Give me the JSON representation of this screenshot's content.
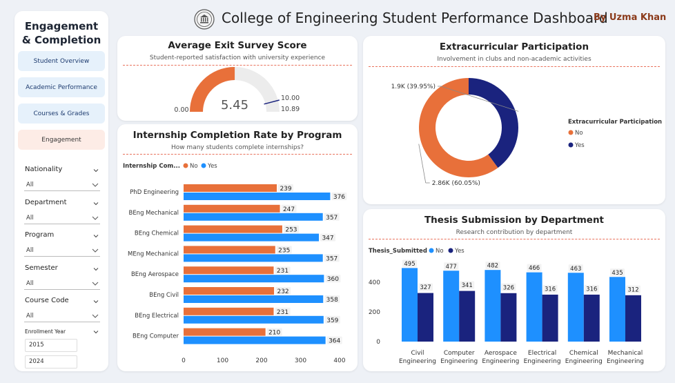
{
  "header": {
    "title": "College of Engineering Student Performance Dashboard",
    "author": "By Uzma Khan"
  },
  "sidebar": {
    "title_line1": "Engagement",
    "title_line2": "& Completion",
    "nav": [
      {
        "label": "Student Overview",
        "active": false
      },
      {
        "label": "Academic Performance",
        "active": false
      },
      {
        "label": "Courses & Grades",
        "active": false
      },
      {
        "label": "Engagement",
        "active": true
      }
    ],
    "filters": [
      {
        "label": "Nationality",
        "value": "All"
      },
      {
        "label": "Department",
        "value": "All"
      },
      {
        "label": "Program",
        "value": "All"
      },
      {
        "label": "Semester",
        "value": "All"
      },
      {
        "label": "Course Code",
        "value": "All"
      }
    ],
    "enrollment_year": {
      "label": "Enrollment Year",
      "from": "2015",
      "to": "2024"
    }
  },
  "colors": {
    "orange": "#e8703a",
    "blue": "#1e90ff",
    "navy": "#1a237e",
    "gauge_bg": "#ececec"
  },
  "gauge": {
    "title": "Average Exit Survey Score",
    "subtitle": "Student-reported satisfaction with university experience",
    "value": 5.45,
    "value_label": "5.45",
    "min_label": "0.00",
    "max": 10.89,
    "max_label": "10.89",
    "target": 10.0,
    "target_label": "10.00"
  },
  "internship": {
    "title": "Internship Completion Rate by Program",
    "subtitle": "How many students complete internships?",
    "legend_title": "Internship Com...",
    "legend": [
      {
        "name": "No",
        "color": "#e8703a"
      },
      {
        "name": "Yes",
        "color": "#1e90ff"
      }
    ],
    "chart_data": {
      "type": "bar",
      "orientation": "horizontal",
      "categories": [
        "PhD Engineering",
        "BEng Mechanical",
        "BEng Chemical",
        "MEng Mechanical",
        "BEng Aerospace",
        "BEng Civil",
        "BEng Electrical",
        "BEng Computer"
      ],
      "series": [
        {
          "name": "No",
          "values": [
            239,
            247,
            253,
            235,
            231,
            232,
            231,
            210
          ]
        },
        {
          "name": "Yes",
          "values": [
            376,
            357,
            347,
            357,
            360,
            358,
            359,
            364
          ]
        }
      ],
      "xlim": [
        0,
        400
      ],
      "xticks": [
        "0",
        "100",
        "200",
        "300",
        "400"
      ]
    }
  },
  "extracurricular": {
    "title": "Extracurricular Participation",
    "subtitle": "Involvement in clubs and non-academic activities",
    "legend_title": "Extracurricular Participation",
    "chart_data": {
      "type": "pie",
      "donut": true,
      "slices": [
        {
          "name": "No",
          "value": 60.05,
          "label": "2.86K (60.05%)",
          "color": "#e8703a"
        },
        {
          "name": "Yes",
          "value": 39.95,
          "label": "1.9K (39.95%)",
          "color": "#1a237e"
        }
      ]
    }
  },
  "thesis": {
    "title": "Thesis Submission by Department",
    "subtitle": "Research contribution by department",
    "legend_title": "Thesis_Submitted",
    "legend": [
      {
        "name": "No",
        "color": "#1e90ff"
      },
      {
        "name": "Yes",
        "color": "#1a237e"
      }
    ],
    "chart_data": {
      "type": "bar",
      "categories": [
        [
          "Civil",
          "Engineering"
        ],
        [
          "Computer",
          "Engineering"
        ],
        [
          "Aerospace",
          "Engineering"
        ],
        [
          "Electrical",
          "Engineering"
        ],
        [
          "Chemical",
          "Engineering"
        ],
        [
          "Mechanical",
          "Engineering"
        ]
      ],
      "series": [
        {
          "name": "No",
          "values": [
            495,
            477,
            482,
            466,
            463,
            435
          ]
        },
        {
          "name": "Yes",
          "values": [
            327,
            341,
            326,
            316,
            316,
            312
          ]
        }
      ],
      "ylim": [
        0,
        520
      ],
      "yticks": [
        "0",
        "200",
        "400"
      ]
    }
  }
}
